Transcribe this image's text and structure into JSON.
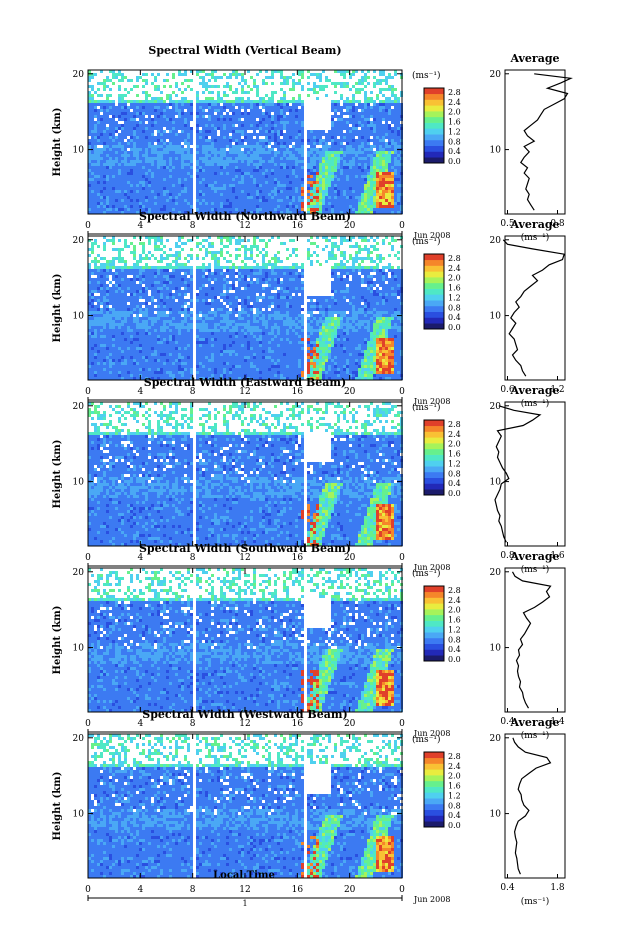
{
  "figure": {
    "xlabel": "Local Time"
  },
  "colorbar": {
    "unit_label": "(ms⁻¹)",
    "ticks": [
      "0.0",
      "0.4",
      "0.8",
      "1.2",
      "1.6",
      "2.0",
      "2.4",
      "2.8"
    ],
    "colors": [
      "#1b1b6b",
      "#2229b8",
      "#2a4fe0",
      "#3c7af2",
      "#4aa8f5",
      "#4fd0ef",
      "#4fe8c5",
      "#66f08d",
      "#a6f35a",
      "#e9ec3f",
      "#f9c134",
      "#f5862a",
      "#e0402a"
    ]
  },
  "chart_data": [
    {
      "type": "heatmap",
      "title": "Spectral Width (Vertical Beam)",
      "ylabel": "Height (km)",
      "xlabel": "Local Time",
      "x_ticks": [
        "0",
        "4",
        "8",
        "12",
        "16",
        "20",
        "0"
      ],
      "xlim": [
        0,
        24
      ],
      "y_ticks": [
        "10",
        "20"
      ],
      "ylim": [
        1.5,
        20.5
      ],
      "date_label": "Jun 2008",
      "day_label": "1",
      "average_profile": {
        "title": "Average",
        "xlabel": "(ms⁻¹)",
        "x_ticks": [
          "0.5",
          "0.8"
        ],
        "y_ticks": [
          "10",
          "20"
        ],
        "x": [
          0.66,
          0.64,
          0.62,
          0.63,
          0.61,
          0.62,
          0.63,
          0.6,
          0.62,
          0.58,
          0.6,
          0.63,
          0.6,
          0.66,
          0.62,
          0.6,
          0.64,
          0.68,
          0.7,
          0.72,
          0.78,
          0.84,
          0.86,
          0.74,
          0.82,
          0.88,
          0.66
        ],
        "y": [
          2,
          2.7,
          3.4,
          4.1,
          4.8,
          5.5,
          6.2,
          6.9,
          7.6,
          8.3,
          9,
          9.7,
          10.4,
          11.1,
          11.8,
          12.5,
          13.2,
          13.9,
          14.6,
          15.3,
          16,
          16.7,
          17.4,
          18.1,
          18.8,
          19.4,
          20
        ]
      }
    },
    {
      "type": "heatmap",
      "title": "Spectral Width (Northward Beam)",
      "ylabel": "Height (km)",
      "xlabel": "Local Time",
      "x_ticks": [
        "0",
        "4",
        "8",
        "12",
        "16",
        "20",
        "0"
      ],
      "xlim": [
        0,
        24
      ],
      "y_ticks": [
        "10",
        "20"
      ],
      "ylim": [
        1.5,
        20.5
      ],
      "date_label": "Jun 2008",
      "day_label": "1",
      "average_profile": {
        "title": "Average",
        "xlabel": "(ms⁻¹)",
        "x_ticks": [
          "0.6",
          "1.2"
        ],
        "y_ticks": [
          "10",
          "20"
        ],
        "x": [
          0.82,
          0.78,
          0.76,
          0.7,
          0.66,
          0.72,
          0.7,
          0.68,
          0.62,
          0.66,
          0.7,
          0.64,
          0.68,
          0.74,
          0.7,
          0.76,
          0.8,
          0.88,
          0.96,
          0.9,
          1.02,
          1.1,
          1.26,
          1.28,
          0.9,
          0.6,
          0.55
        ],
        "y": [
          2,
          2.7,
          3.4,
          4.1,
          4.8,
          5.5,
          6.2,
          6.9,
          7.6,
          8.3,
          9,
          9.7,
          10.4,
          11.1,
          11.8,
          12.5,
          13.2,
          13.9,
          14.6,
          15.3,
          16,
          16.7,
          17.4,
          18.1,
          18.8,
          19.4,
          20
        ]
      }
    },
    {
      "type": "heatmap",
      "title": "Spectral Width (Eastward Beam)",
      "ylabel": "Height (km)",
      "xlabel": "Local Time",
      "x_ticks": [
        "0",
        "4",
        "8",
        "12",
        "16",
        "20",
        "0"
      ],
      "xlim": [
        0,
        24
      ],
      "y_ticks": [
        "10",
        "20"
      ],
      "ylim": [
        1.5,
        20.5
      ],
      "date_label": "Jun 2008",
      "day_label": "1",
      "average_profile": {
        "title": "Average",
        "xlabel": "(ms⁻¹)",
        "x_ticks": [
          "0.8",
          "1.6"
        ],
        "y_ticks": [
          "10",
          "20"
        ],
        "x": [
          0.78,
          0.74,
          0.72,
          0.7,
          0.66,
          0.68,
          0.64,
          0.62,
          0.6,
          0.64,
          0.68,
          0.7,
          0.82,
          0.78,
          0.72,
          0.68,
          0.64,
          0.66,
          0.62,
          0.66,
          0.7,
          0.64,
          1.05,
          1.2,
          1.32,
          0.9,
          0.66
        ],
        "y": [
          2,
          2.7,
          3.4,
          4.1,
          4.8,
          5.5,
          6.2,
          6.9,
          7.6,
          8.3,
          9,
          9.7,
          10.4,
          11.1,
          11.8,
          12.5,
          13.2,
          13.9,
          14.6,
          15.3,
          16,
          16.7,
          17.4,
          18.1,
          18.8,
          19.4,
          20
        ]
      }
    },
    {
      "type": "heatmap",
      "title": "Spectral Width (Southward Beam)",
      "ylabel": "Height (km)",
      "xlabel": "Local Time",
      "x_ticks": [
        "0",
        "4",
        "8",
        "12",
        "16",
        "20",
        "0"
      ],
      "xlim": [
        0,
        24
      ],
      "y_ticks": [
        "10",
        "20"
      ],
      "ylim": [
        1.5,
        20.5
      ],
      "date_label": "Jun 2008",
      "day_label": "1",
      "average_profile": {
        "title": "Average",
        "xlabel": "(ms⁻¹)",
        "x_ticks": [
          "0.4",
          "1.4"
        ],
        "y_ticks": [
          "10",
          "20"
        ],
        "x": [
          0.82,
          0.76,
          0.72,
          0.7,
          0.64,
          0.66,
          0.62,
          0.6,
          0.62,
          0.58,
          0.64,
          0.62,
          0.7,
          0.66,
          0.74,
          0.8,
          0.86,
          0.78,
          0.72,
          0.94,
          1.1,
          1.24,
          1.18,
          1.26,
          0.7,
          0.55,
          0.5
        ],
        "y": [
          2,
          2.7,
          3.4,
          4.1,
          4.8,
          5.5,
          6.2,
          6.9,
          7.6,
          8.3,
          9,
          9.7,
          10.4,
          11.1,
          11.8,
          12.5,
          13.2,
          13.9,
          14.6,
          15.3,
          16,
          16.7,
          17.4,
          18.1,
          18.8,
          19.4,
          20
        ]
      }
    },
    {
      "type": "heatmap",
      "title": "Spectral Width (Westward Beam)",
      "ylabel": "Height (km)",
      "xlabel": "Local Time",
      "x_ticks": [
        "0",
        "4",
        "8",
        "12",
        "16",
        "20",
        "0"
      ],
      "xlim": [
        0,
        24
      ],
      "y_ticks": [
        "10",
        "20"
      ],
      "ylim": [
        1.5,
        20.5
      ],
      "date_label": "Jun 2008",
      "day_label": "1",
      "average_profile": {
        "title": "Average",
        "xlabel": "(ms⁻¹)",
        "x_ticks": [
          "0.4",
          "1.8"
        ],
        "y_ticks": [
          "10",
          "20"
        ],
        "x": [
          0.76,
          0.7,
          0.68,
          0.66,
          0.62,
          0.64,
          0.66,
          0.62,
          0.6,
          0.64,
          0.7,
          0.9,
          1.0,
          0.86,
          0.8,
          0.78,
          0.7,
          0.74,
          0.8,
          1.0,
          1.2,
          1.6,
          1.5,
          0.9,
          0.7,
          0.6,
          0.55
        ],
        "y": [
          2,
          2.7,
          3.4,
          4.1,
          4.8,
          5.5,
          6.2,
          6.9,
          7.6,
          8.3,
          9,
          9.7,
          10.4,
          11.1,
          11.8,
          12.5,
          13.2,
          13.9,
          14.6,
          15.3,
          16,
          16.7,
          17.4,
          18.1,
          18.8,
          19.4,
          20
        ]
      }
    }
  ]
}
